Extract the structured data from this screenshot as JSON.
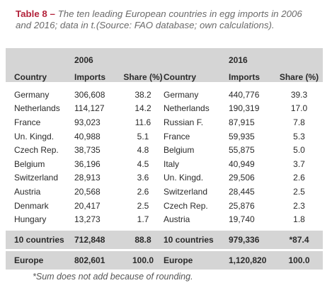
{
  "caption": {
    "label": "Table 8 –",
    "text": "The ten leading European countries in egg imports in 2006 and 2016; data in t.(Source: FAO database; own calculations)."
  },
  "table": {
    "years": [
      "2006",
      "2016"
    ],
    "header": [
      "Country",
      "Imports",
      "Share (%)",
      "Country",
      "Imports",
      "Share (%)"
    ],
    "rows": [
      [
        "Germany",
        "306,608",
        "38.2",
        "Germany",
        "440,776",
        "39.3"
      ],
      [
        "Netherlands",
        "114,127",
        "14.2",
        "Netherlands",
        "190,319",
        "17.0"
      ],
      [
        "France",
        "93,023",
        "11.6",
        "Russian F.",
        "87,915",
        "7.8"
      ],
      [
        "Un. Kingd.",
        "40,988",
        "5.1",
        "France",
        "59,935",
        "5.3"
      ],
      [
        "Czech Rep.",
        "38,735",
        "4.8",
        "Belgium",
        "55,875",
        "5.0"
      ],
      [
        "Belgium",
        "36,196",
        "4.5",
        "Italy",
        "40,949",
        "3.7"
      ],
      [
        "Switzerland",
        "28,913",
        "3.6",
        "Un. Kingd.",
        "29,506",
        "2.6"
      ],
      [
        "Austria",
        "20,568",
        "2.6",
        "Switzerland",
        "28,445",
        "2.5"
      ],
      [
        "Denmark",
        "20,417",
        "2.5",
        "Czech Rep.",
        "25,876",
        "2.3"
      ],
      [
        "Hungary",
        "13,273",
        "1.7",
        "Austria",
        "19,740",
        "1.8"
      ]
    ],
    "totals": [
      [
        "10 countries",
        "712,848",
        "88.8",
        "10 countries",
        "979,336",
        "*87.4"
      ],
      [
        "Europe",
        "802,601",
        "100.0",
        "Europe",
        "1,120,820",
        "100.0"
      ]
    ]
  },
  "footnote": "*Sum does not add because of rounding."
}
